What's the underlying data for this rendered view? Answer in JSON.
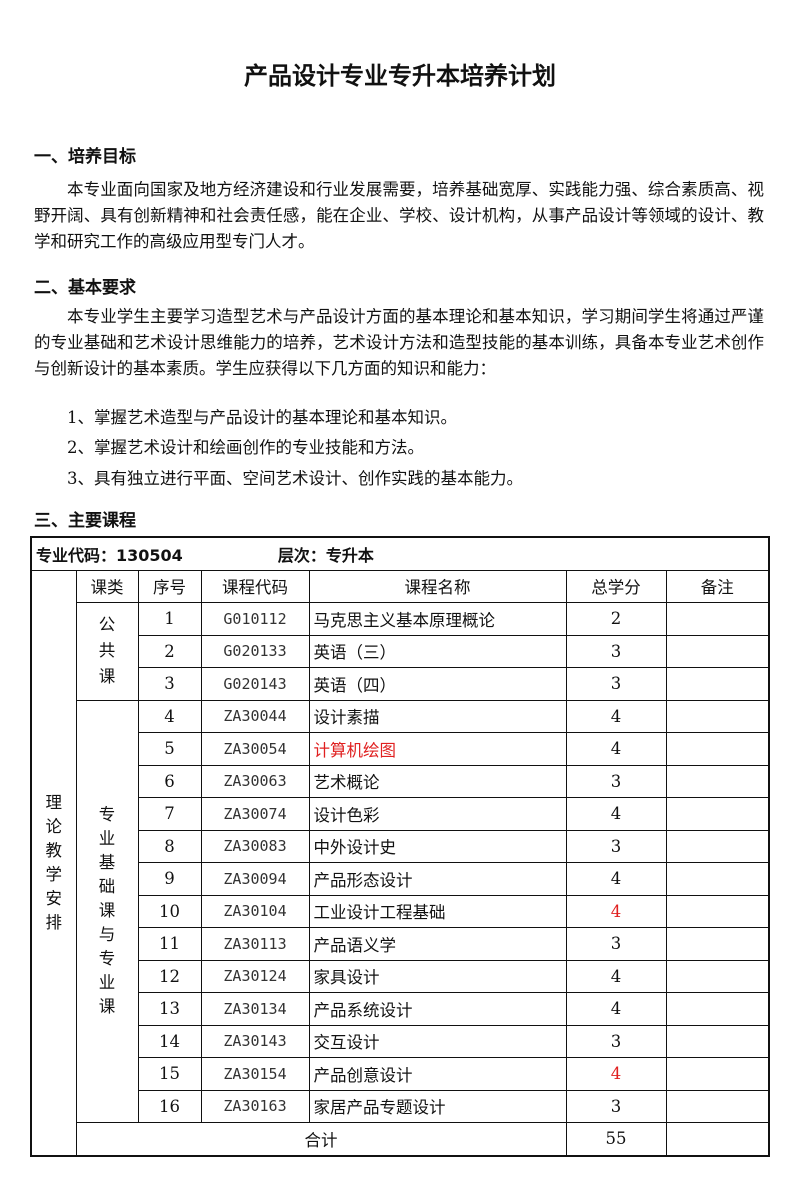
{
  "title": "产品设计专业专升本培养计划",
  "sections": {
    "goal": {
      "heading": "一、培养目标",
      "text": "本专业面向国家及地方经济建设和行业发展需要，培养基础宽厚、实践能力强、综合素质高、视野开阔、具有创新精神和社会责任感，能在企业、学校、设计机构，从事产品设计等领域的设计、教学和研究工作的高级应用型专门人才。"
    },
    "requirements": {
      "heading": "二、基本要求",
      "text": "本专业学生主要学习造型艺术与产品设计方面的基本理论和基本知识，学习期间学生将通过严谨的专业基础和艺术设计思维能力的培养，艺术设计方法和造型技能的基本训练，具备本专业艺术创作与创新设计的基本素质。学生应获得以下几方面的知识和能力：",
      "items": [
        "1、掌握艺术造型与产品设计的基本理论和基本知识。",
        "2、掌握艺术设计和绘画创作的专业技能和方法。",
        "3、具有独立进行平面、空间艺术设计、创作实践的基本能力。"
      ]
    },
    "courses": {
      "heading": "三、主要课程"
    }
  },
  "table": {
    "major_code": "专业代码：130504",
    "level": "层次：专升本",
    "side_label": "理论教学安排",
    "headers": [
      "课类",
      "序号",
      "课程代码",
      "课程名称",
      "总学分",
      "备注"
    ],
    "groups": [
      {
        "label": "公共课",
        "rows": [
          {
            "no": "1",
            "code": "G010112",
            "name": "马克思主义基本原理概论",
            "credits": "2",
            "note": ""
          },
          {
            "no": "2",
            "code": "G020133",
            "name": "英语（三）",
            "credits": "3",
            "note": ""
          },
          {
            "no": "3",
            "code": "G020143",
            "name": "英语（四）",
            "credits": "3",
            "note": ""
          }
        ]
      },
      {
        "label": "专业基础课与专业课",
        "rows": [
          {
            "no": "4",
            "code": "ZA30044",
            "name": "设计素描",
            "credits": "4",
            "note": ""
          },
          {
            "no": "5",
            "code": "ZA30054",
            "name": "计算机绘图",
            "credits": "4",
            "note": "",
            "name_red": true
          },
          {
            "no": "6",
            "code": "ZA30063",
            "name": "艺术概论",
            "credits": "3",
            "note": ""
          },
          {
            "no": "7",
            "code": "ZA30074",
            "name": "设计色彩",
            "credits": "4",
            "note": ""
          },
          {
            "no": "8",
            "code": "ZA30083",
            "name": "中外设计史",
            "credits": "3",
            "note": ""
          },
          {
            "no": "9",
            "code": "ZA30094",
            "name": "产品形态设计",
            "credits": "4",
            "note": ""
          },
          {
            "no": "10",
            "code": "ZA30104",
            "name": "工业设计工程基础",
            "credits": "4",
            "note": "",
            "credits_red": true
          },
          {
            "no": "11",
            "code": "ZA30113",
            "name": "产品语义学",
            "credits": "3",
            "note": ""
          },
          {
            "no": "12",
            "code": "ZA30124",
            "name": "家具设计",
            "credits": "4",
            "note": ""
          },
          {
            "no": "13",
            "code": "ZA30134",
            "name": "产品系统设计",
            "credits": "4",
            "note": ""
          },
          {
            "no": "14",
            "code": "ZA30143",
            "name": "交互设计",
            "credits": "3",
            "note": ""
          },
          {
            "no": "15",
            "code": "ZA30154",
            "name": "产品创意设计",
            "credits": "4",
            "note": "",
            "credits_red": true
          },
          {
            "no": "16",
            "code": "ZA30163",
            "name": "家居产品专题设计",
            "credits": "3",
            "note": ""
          }
        ]
      }
    ],
    "total_label": "合计",
    "total_credits": "55",
    "total_note": ""
  },
  "colors": {
    "highlight": "#e02020",
    "text": "#111111"
  }
}
